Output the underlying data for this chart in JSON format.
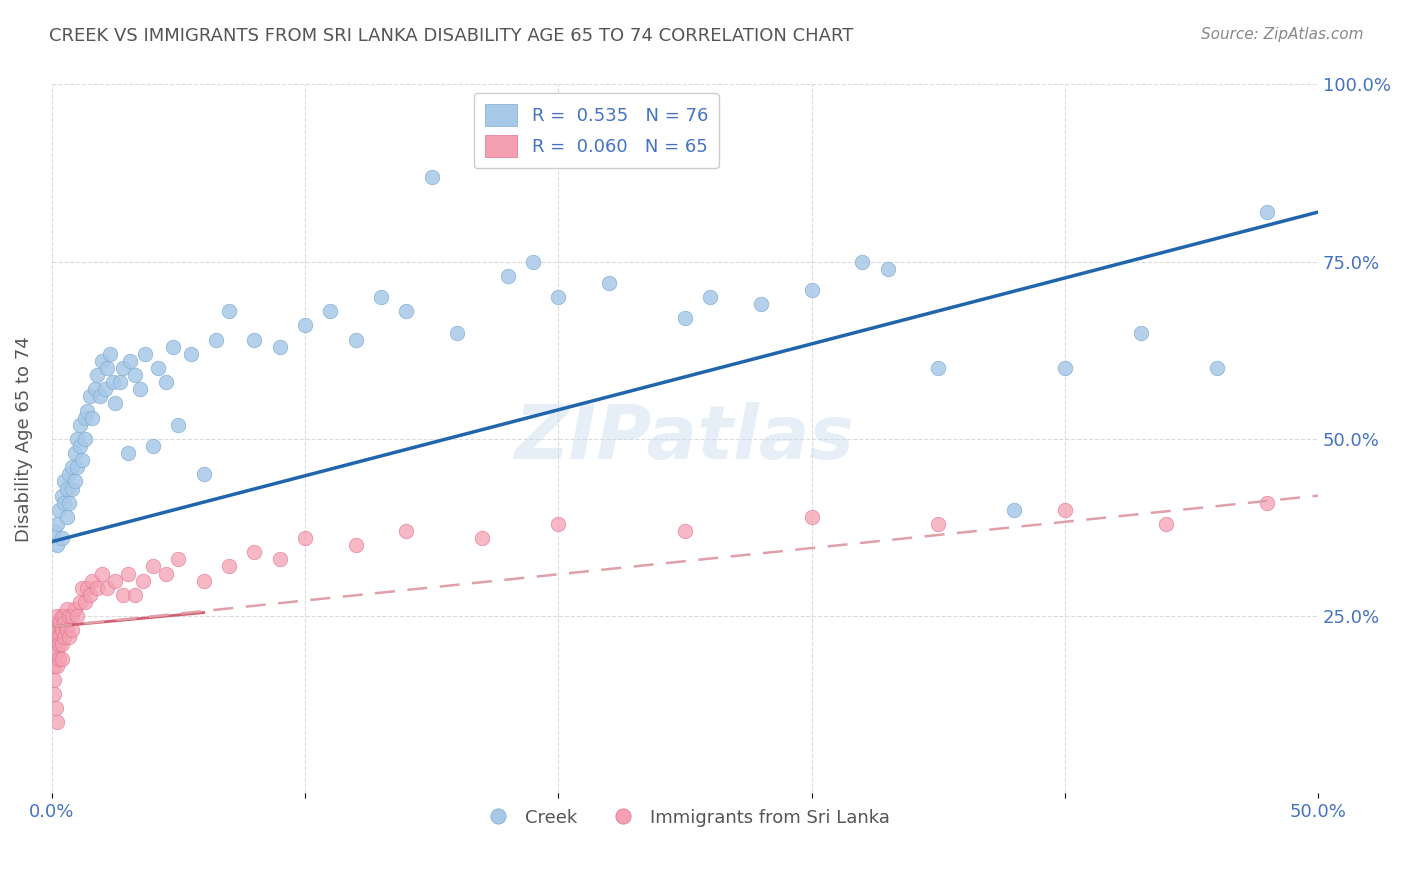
{
  "title": "CREEK VS IMMIGRANTS FROM SRI LANKA DISABILITY AGE 65 TO 74 CORRELATION CHART",
  "source": "Source: ZipAtlas.com",
  "ylabel": "Disability Age 65 to 74",
  "xlim": [
    0,
    0.5
  ],
  "ylim": [
    0,
    1.0
  ],
  "watermark": "ZIPatlas",
  "legend_label1": "Creek",
  "legend_label2": "Immigrants from Sri Lanka",
  "blue_color": "#a8c8e8",
  "pink_color": "#f4a0b0",
  "blue_line_color": "#2166ac",
  "pink_line_color": "#d06070",
  "pink_dash_color": "#e0a0a8",
  "title_color": "#555555",
  "axis_color": "#4472c4",
  "creek_scatter": {
    "x": [
      0.001,
      0.002,
      0.002,
      0.003,
      0.004,
      0.004,
      0.005,
      0.005,
      0.006,
      0.006,
      0.007,
      0.007,
      0.008,
      0.008,
      0.009,
      0.009,
      0.01,
      0.01,
      0.011,
      0.011,
      0.012,
      0.013,
      0.013,
      0.014,
      0.015,
      0.016,
      0.017,
      0.018,
      0.019,
      0.02,
      0.021,
      0.022,
      0.023,
      0.024,
      0.025,
      0.027,
      0.028,
      0.03,
      0.031,
      0.033,
      0.035,
      0.037,
      0.04,
      0.042,
      0.045,
      0.048,
      0.05,
      0.055,
      0.06,
      0.065,
      0.07,
      0.08,
      0.09,
      0.1,
      0.11,
      0.12,
      0.13,
      0.14,
      0.16,
      0.18,
      0.2,
      0.22,
      0.25,
      0.28,
      0.3,
      0.33,
      0.35,
      0.38,
      0.4,
      0.43,
      0.46,
      0.48,
      0.15,
      0.19,
      0.26,
      0.32
    ],
    "y": [
      0.37,
      0.35,
      0.38,
      0.4,
      0.36,
      0.42,
      0.41,
      0.44,
      0.43,
      0.39,
      0.45,
      0.41,
      0.46,
      0.43,
      0.48,
      0.44,
      0.5,
      0.46,
      0.52,
      0.49,
      0.47,
      0.53,
      0.5,
      0.54,
      0.56,
      0.53,
      0.57,
      0.59,
      0.56,
      0.61,
      0.57,
      0.6,
      0.62,
      0.58,
      0.55,
      0.58,
      0.6,
      0.48,
      0.61,
      0.59,
      0.57,
      0.62,
      0.49,
      0.6,
      0.58,
      0.63,
      0.52,
      0.62,
      0.45,
      0.64,
      0.68,
      0.64,
      0.63,
      0.66,
      0.68,
      0.64,
      0.7,
      0.68,
      0.65,
      0.73,
      0.7,
      0.72,
      0.67,
      0.69,
      0.71,
      0.74,
      0.6,
      0.4,
      0.6,
      0.65,
      0.6,
      0.82,
      0.87,
      0.75,
      0.7,
      0.75
    ]
  },
  "srilanka_scatter": {
    "x": [
      0.0005,
      0.001,
      0.001,
      0.001,
      0.001,
      0.001,
      0.002,
      0.002,
      0.002,
      0.002,
      0.002,
      0.003,
      0.003,
      0.003,
      0.003,
      0.004,
      0.004,
      0.004,
      0.004,
      0.005,
      0.005,
      0.005,
      0.006,
      0.006,
      0.007,
      0.007,
      0.008,
      0.008,
      0.009,
      0.01,
      0.011,
      0.012,
      0.013,
      0.014,
      0.015,
      0.016,
      0.018,
      0.02,
      0.022,
      0.025,
      0.028,
      0.03,
      0.033,
      0.036,
      0.04,
      0.045,
      0.05,
      0.06,
      0.07,
      0.08,
      0.09,
      0.1,
      0.12,
      0.14,
      0.17,
      0.2,
      0.25,
      0.3,
      0.35,
      0.4,
      0.44,
      0.48,
      0.0008,
      0.0015,
      0.002
    ],
    "y": [
      0.22,
      0.2,
      0.24,
      0.21,
      0.18,
      0.16,
      0.23,
      0.25,
      0.2,
      0.22,
      0.18,
      0.22,
      0.24,
      0.21,
      0.19,
      0.23,
      0.25,
      0.21,
      0.19,
      0.25,
      0.22,
      0.24,
      0.23,
      0.26,
      0.22,
      0.25,
      0.25,
      0.23,
      0.26,
      0.25,
      0.27,
      0.29,
      0.27,
      0.29,
      0.28,
      0.3,
      0.29,
      0.31,
      0.29,
      0.3,
      0.28,
      0.31,
      0.28,
      0.3,
      0.32,
      0.31,
      0.33,
      0.3,
      0.32,
      0.34,
      0.33,
      0.36,
      0.35,
      0.37,
      0.36,
      0.38,
      0.37,
      0.39,
      0.38,
      0.4,
      0.38,
      0.41,
      0.14,
      0.12,
      0.1
    ]
  },
  "creek_line": {
    "x0": 0.0,
    "x1": 0.5,
    "y0": 0.355,
    "y1": 0.82
  },
  "srilanka_line_solid": {
    "x0": 0.0,
    "x1": 0.06,
    "y0": 0.235,
    "y1": 0.255
  },
  "srilanka_line_dash": {
    "x0": 0.0,
    "x1": 0.5,
    "y0": 0.235,
    "y1": 0.42
  }
}
